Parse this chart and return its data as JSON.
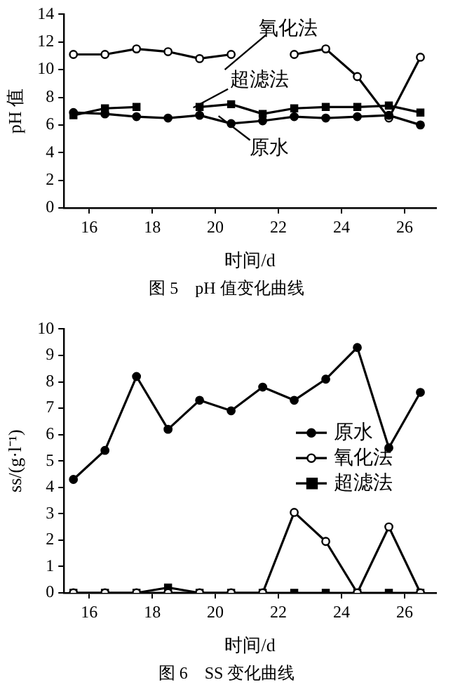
{
  "chart_data": [
    {
      "type": "line",
      "title": "图 5　pH 值变化曲线",
      "xlabel": "时间/d",
      "ylabel": "pH 值",
      "x": [
        15.5,
        16.5,
        17.5,
        18.5,
        19.5,
        20.5,
        21.5,
        22.5,
        23.5,
        24.5,
        25.5,
        26.5
      ],
      "xlim": [
        15.2,
        27
      ],
      "xticks": [
        16,
        18,
        20,
        22,
        24,
        26
      ],
      "ylim": [
        0,
        14
      ],
      "yticks": [
        0,
        2,
        4,
        6,
        8,
        10,
        12,
        14
      ],
      "grid": false,
      "legend": "center",
      "series": [
        {
          "name": "原水",
          "color": "#000000",
          "marker": "circle",
          "values": [
            6.9,
            6.8,
            6.6,
            6.5,
            6.7,
            6.1,
            6.3,
            6.6,
            6.5,
            6.6,
            6.7,
            6.0
          ]
        },
        {
          "name": "氧化法",
          "color": "#000000",
          "marker": "circle",
          "values": [
            11.1,
            11.1,
            11.5,
            11.3,
            10.8,
            11.1,
            null,
            11.1,
            11.5,
            9.5,
            6.5,
            10.9
          ]
        },
        {
          "name": "超滤法",
          "color": "#000000",
          "marker": "square",
          "values": [
            6.7,
            7.2,
            7.3,
            null,
            7.3,
            7.5,
            6.8,
            7.2,
            7.3,
            7.3,
            7.4,
            6.9
          ]
        }
      ]
    },
    {
      "type": "line",
      "title": "图 6　SS 变化曲线",
      "xlabel": "时间/d",
      "ylabel": "ss/(g·l⁻¹)",
      "x": [
        15.5,
        16.5,
        17.5,
        18.5,
        19.5,
        20.5,
        21.5,
        22.5,
        23.5,
        24.5,
        25.5,
        26.5
      ],
      "xlim": [
        15.2,
        27
      ],
      "xticks": [
        16,
        18,
        20,
        22,
        24,
        26
      ],
      "ylim": [
        0,
        10
      ],
      "yticks": [
        0,
        1,
        2,
        3,
        4,
        5,
        6,
        7,
        8,
        9,
        10
      ],
      "grid": false,
      "legend": "right",
      "series": [
        {
          "name": "原水",
          "color": "#000000",
          "marker": "circle",
          "values": [
            4.3,
            5.4,
            8.2,
            6.2,
            7.3,
            6.9,
            7.8,
            7.3,
            8.1,
            9.3,
            5.5,
            7.6
          ]
        },
        {
          "name": "氧化法",
          "color": "#000000",
          "marker": "circle",
          "values": [
            0,
            0,
            0,
            0,
            0,
            0,
            0,
            3.05,
            1.95,
            0,
            2.5,
            0
          ]
        },
        {
          "name": "超滤法",
          "color": "#000000",
          "marker": "square",
          "values": [
            0,
            0,
            0,
            0.2,
            0,
            0,
            0,
            0,
            0,
            0,
            0,
            0
          ]
        }
      ]
    }
  ]
}
